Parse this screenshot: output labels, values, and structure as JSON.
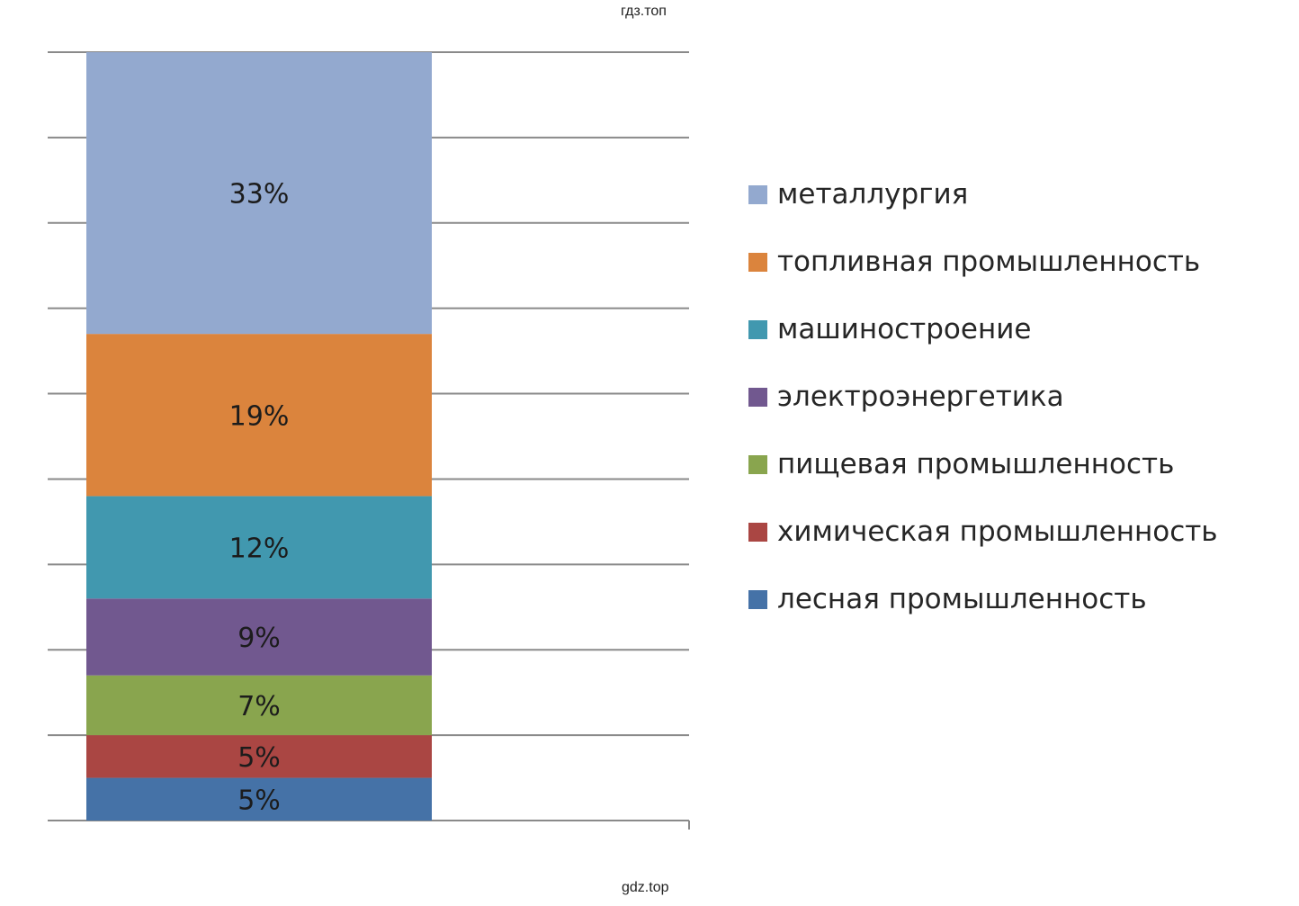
{
  "watermark_top": "гдз.топ",
  "watermark_bottom": "gdz.top",
  "chart_data": {
    "type": "bar",
    "stacked": true,
    "ylim": [
      0,
      90
    ],
    "grid": true,
    "legend_position": "right",
    "series": [
      {
        "name": "лесная промышленность",
        "value": 5,
        "label": "5%",
        "color": "#4572a7"
      },
      {
        "name": "химическая промышленность",
        "value": 5,
        "label": "5%",
        "color": "#aa4643"
      },
      {
        "name": "пищевая промышленность",
        "value": 7,
        "label": "7%",
        "color": "#89a54e"
      },
      {
        "name": "электроэнергетика",
        "value": 9,
        "label": "9%",
        "color": "#71588f"
      },
      {
        "name": "машиностроение",
        "value": 12,
        "label": "12%",
        "color": "#4198af"
      },
      {
        "name": "топливная промышленность",
        "value": 19,
        "label": "19%",
        "color": "#db843d"
      },
      {
        "name": "металлургия",
        "value": 33,
        "label": "33%",
        "color": "#93a9cf"
      }
    ]
  }
}
